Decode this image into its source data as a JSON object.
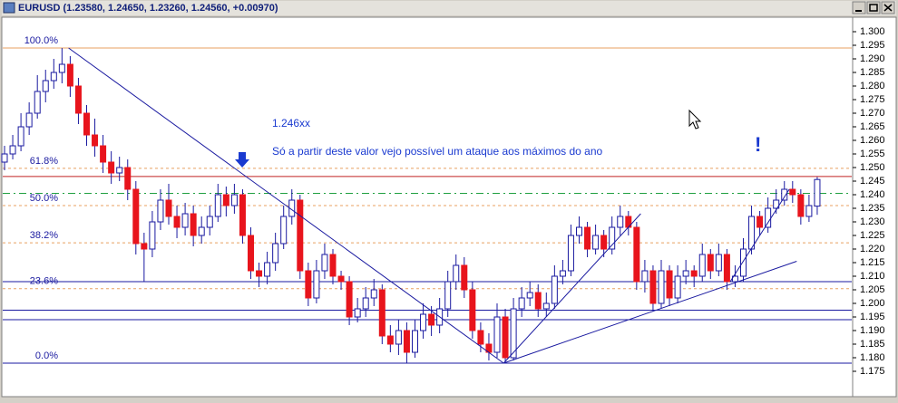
{
  "chart_data": {
    "type": "candlestick",
    "title": "EURUSD (1.23580, 1.24650, 1.23260, 1.24560, +0.00970)",
    "open": [
      1.252,
      1.255,
      1.258,
      1.265,
      1.27,
      1.278,
      1.282,
      1.285,
      1.288,
      1.28,
      1.27,
      1.262,
      1.258,
      1.252,
      1.248,
      1.25,
      1.242,
      1.222,
      1.22,
      1.23,
      1.238,
      1.232,
      1.228,
      1.233,
      1.225,
      1.228,
      1.232,
      1.24,
      1.236,
      1.24,
      1.225,
      1.212,
      1.21,
      1.215,
      1.222,
      1.232,
      1.238,
      1.212,
      1.202,
      1.212,
      1.218,
      1.21,
      1.208,
      1.195,
      1.198,
      1.202,
      1.205,
      1.188,
      1.185,
      1.19,
      1.182,
      1.19,
      1.196,
      1.192,
      1.198,
      1.208,
      1.214,
      1.205,
      1.19,
      1.185,
      1.182,
      1.195,
      1.18,
      1.198,
      1.202,
      1.204,
      1.198,
      1.2,
      1.21,
      1.212,
      1.225,
      1.228,
      1.22,
      1.225,
      1.22,
      1.228,
      1.232,
      1.228,
      1.208,
      1.212,
      1.2,
      1.212,
      1.202,
      1.21,
      1.212,
      1.21,
      1.218,
      1.212,
      1.218,
      1.208,
      1.21,
      1.22,
      1.232,
      1.228,
      1.235,
      1.238,
      1.242,
      1.24,
      1.232,
      1.2358
    ],
    "high": [
      1.258,
      1.262,
      1.27,
      1.274,
      1.284,
      1.286,
      1.29,
      1.294,
      1.291,
      1.283,
      1.273,
      1.268,
      1.262,
      1.256,
      1.254,
      1.253,
      1.245,
      1.226,
      1.234,
      1.242,
      1.244,
      1.236,
      1.237,
      1.236,
      1.232,
      1.236,
      1.244,
      1.243,
      1.244,
      1.242,
      1.228,
      1.215,
      1.219,
      1.226,
      1.236,
      1.242,
      1.24,
      1.215,
      1.216,
      1.222,
      1.22,
      1.212,
      1.21,
      1.202,
      1.206,
      1.209,
      1.207,
      1.192,
      1.194,
      1.193,
      1.194,
      1.2,
      1.199,
      1.202,
      1.212,
      1.218,
      1.217,
      1.208,
      1.193,
      1.189,
      1.2,
      1.198,
      1.202,
      1.206,
      1.208,
      1.207,
      1.204,
      1.214,
      1.216,
      1.229,
      1.232,
      1.23,
      1.229,
      1.227,
      1.232,
      1.236,
      1.234,
      1.23,
      1.216,
      1.214,
      1.216,
      1.214,
      1.214,
      1.216,
      1.214,
      1.222,
      1.22,
      1.222,
      1.22,
      1.214,
      1.224,
      1.236,
      1.234,
      1.239,
      1.242,
      1.245,
      1.245,
      1.242,
      1.24,
      1.2465
    ],
    "low": [
      1.249,
      1.253,
      1.256,
      1.262,
      1.268,
      1.274,
      1.279,
      1.281,
      1.276,
      1.266,
      1.258,
      1.254,
      1.248,
      1.244,
      1.245,
      1.238,
      1.218,
      1.208,
      1.217,
      1.227,
      1.229,
      1.224,
      1.225,
      1.221,
      1.222,
      1.225,
      1.23,
      1.232,
      1.233,
      1.222,
      1.209,
      1.206,
      1.207,
      1.212,
      1.22,
      1.229,
      1.209,
      1.199,
      1.2,
      1.209,
      1.207,
      1.205,
      1.192,
      1.193,
      1.195,
      1.199,
      1.185,
      1.182,
      1.181,
      1.178,
      1.18,
      1.187,
      1.188,
      1.189,
      1.195,
      1.205,
      1.202,
      1.187,
      1.182,
      1.179,
      1.18,
      1.178,
      1.179,
      1.195,
      1.199,
      1.195,
      1.195,
      1.198,
      1.207,
      1.21,
      1.222,
      1.217,
      1.218,
      1.217,
      1.218,
      1.225,
      1.225,
      1.205,
      1.204,
      1.197,
      1.198,
      1.199,
      1.2,
      1.207,
      1.206,
      1.208,
      1.209,
      1.21,
      1.205,
      1.206,
      1.208,
      1.218,
      1.225,
      1.226,
      1.233,
      1.236,
      1.237,
      1.229,
      1.23,
      1.2326
    ],
    "close": [
      1.255,
      1.258,
      1.265,
      1.27,
      1.278,
      1.282,
      1.285,
      1.288,
      1.28,
      1.27,
      1.262,
      1.258,
      1.252,
      1.248,
      1.25,
      1.242,
      1.222,
      1.22,
      1.23,
      1.238,
      1.232,
      1.228,
      1.233,
      1.225,
      1.228,
      1.232,
      1.24,
      1.236,
      1.24,
      1.225,
      1.212,
      1.21,
      1.215,
      1.222,
      1.232,
      1.238,
      1.212,
      1.202,
      1.212,
      1.218,
      1.21,
      1.208,
      1.195,
      1.198,
      1.202,
      1.205,
      1.188,
      1.185,
      1.19,
      1.182,
      1.19,
      1.196,
      1.192,
      1.198,
      1.208,
      1.214,
      1.205,
      1.19,
      1.185,
      1.182,
      1.195,
      1.18,
      1.198,
      1.202,
      1.204,
      1.198,
      1.2,
      1.21,
      1.212,
      1.225,
      1.228,
      1.22,
      1.225,
      1.22,
      1.228,
      1.232,
      1.228,
      1.208,
      1.212,
      1.2,
      1.212,
      1.202,
      1.21,
      1.212,
      1.21,
      1.218,
      1.212,
      1.218,
      1.208,
      1.21,
      1.22,
      1.232,
      1.228,
      1.235,
      1.238,
      1.242,
      1.24,
      1.232,
      1.236,
      1.2456
    ],
    "up_color": "#ffffff",
    "down_color": "#e8141c",
    "outline_color": "#1a1aa0",
    "ylim": [
      1.166,
      1.305
    ],
    "yticks": [
      {
        "value": 1.175,
        "label": "1.175"
      },
      {
        "value": 1.18,
        "label": "1.180"
      },
      {
        "value": 1.185,
        "label": "1.185"
      },
      {
        "value": 1.19,
        "label": "1.190"
      },
      {
        "value": 1.195,
        "label": "1.195"
      },
      {
        "value": 1.2,
        "label": "1.200"
      },
      {
        "value": 1.205,
        "label": "1.205"
      },
      {
        "value": 1.21,
        "label": "1.210"
      },
      {
        "value": 1.215,
        "label": "1.215"
      },
      {
        "value": 1.22,
        "label": "1.220"
      },
      {
        "value": 1.225,
        "label": "1.225"
      },
      {
        "value": 1.23,
        "label": "1.230"
      },
      {
        "value": 1.235,
        "label": "1.235"
      },
      {
        "value": 1.24,
        "label": "1.240"
      },
      {
        "value": 1.245,
        "label": "1.245"
      },
      {
        "value": 1.25,
        "label": "1.250"
      },
      {
        "value": 1.255,
        "label": "1.255"
      },
      {
        "value": 1.26,
        "label": "1.260"
      },
      {
        "value": 1.265,
        "label": "1.265"
      },
      {
        "value": 1.27,
        "label": "1.270"
      },
      {
        "value": 1.275,
        "label": "1.275"
      },
      {
        "value": 1.28,
        "label": "1.280"
      },
      {
        "value": 1.285,
        "label": "1.285"
      },
      {
        "value": 1.29,
        "label": "1.290"
      },
      {
        "value": 1.295,
        "label": "1.295"
      },
      {
        "value": 1.3,
        "label": "1.300"
      }
    ],
    "grid": false,
    "fib_levels": [
      {
        "label": "100.0%",
        "price": 1.294
      },
      {
        "label": "61.8%",
        "price": 1.2497
      },
      {
        "label": "50.0%",
        "price": 1.236
      },
      {
        "label": "38.2%",
        "price": 1.2223
      },
      {
        "label": "23.6%",
        "price": 1.2054
      },
      {
        "label": "0.0%",
        "price": 1.178
      }
    ],
    "fib_color": "#e8a060",
    "hlines": [
      {
        "value": 1.2467,
        "color": "#c02020",
        "dash": "none"
      },
      {
        "value": 1.2405,
        "color": "#20a040",
        "dash": "8,4,2,4"
      },
      {
        "value": 1.208,
        "color": "#1a1aa0",
        "dash": "none"
      },
      {
        "value": 1.1975,
        "color": "#1a1aa0",
        "dash": "none"
      },
      {
        "value": 1.194,
        "color": "#1a1aa0",
        "dash": "none"
      },
      {
        "value": 1.178,
        "color": "#1a1aa0",
        "dash": "none"
      }
    ],
    "trendlines": [
      {
        "x": [
          7.8,
          60.8
        ],
        "y": [
          1.294,
          1.178
        ]
      },
      {
        "x": [
          60.8,
          77.5
        ],
        "y": [
          1.178,
          1.233
        ]
      },
      {
        "x": [
          60.8,
          96.5
        ],
        "y": [
          1.178,
          1.2155
        ]
      },
      {
        "x": [
          88.4,
          95.6
        ],
        "y": [
          1.208,
          1.242
        ]
      }
    ],
    "trend_color": "#1a1aa0",
    "annotations": [
      "1.246xx",
      "Só a partir deste valor vejo possível um  ataque aos máximos do ano",
      "!"
    ]
  }
}
